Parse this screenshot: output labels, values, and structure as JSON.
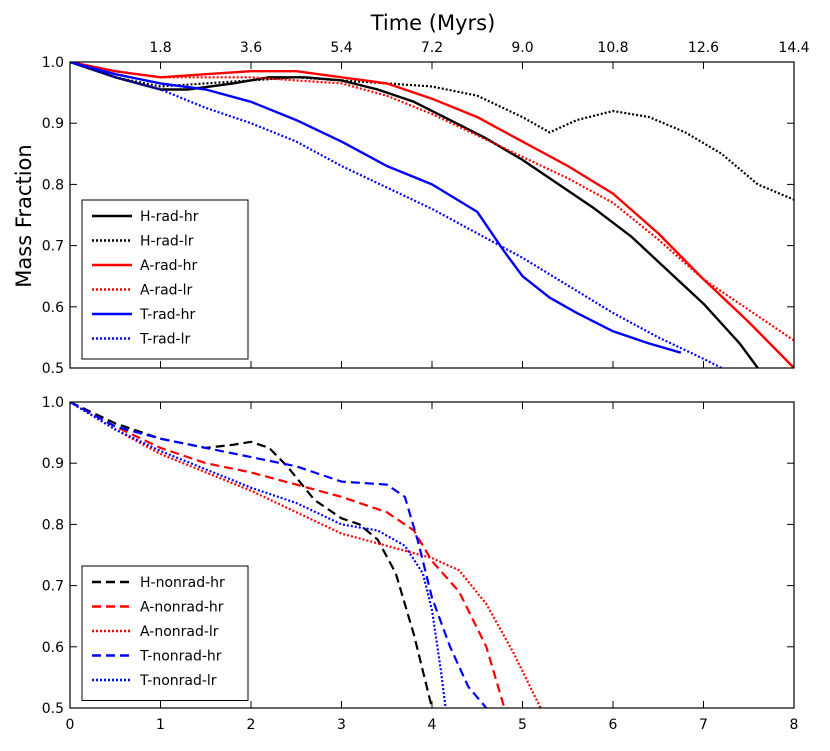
{
  "chart_data": [
    {
      "type": "line",
      "panel": "top",
      "title": "",
      "xlabel": "",
      "ylabel": "Mass Fraction",
      "x2label": "Time (Myrs)",
      "xlim": [
        0,
        8
      ],
      "ylim": [
        0.5,
        1.0
      ],
      "y_ticks": [
        "0.5",
        "0.6",
        "0.7",
        "0.8",
        "0.9",
        "1.0"
      ],
      "x2_ticks": [
        "1.8",
        "3.6",
        "5.4",
        "7.2",
        "9.0",
        "10.8",
        "12.6",
        "14.4"
      ],
      "legend_position": "lower-left",
      "series": [
        {
          "name": "H-rad-hr",
          "color": "#000000",
          "style": "solid",
          "x": [
            0,
            0.5,
            1.0,
            1.3,
            1.8,
            2.2,
            2.6,
            3.0,
            3.4,
            3.8,
            4.2,
            4.6,
            5.0,
            5.4,
            5.8,
            6.2,
            6.6,
            7.0,
            7.4,
            7.6
          ],
          "y": [
            1.0,
            0.975,
            0.955,
            0.955,
            0.965,
            0.975,
            0.975,
            0.97,
            0.955,
            0.935,
            0.905,
            0.875,
            0.84,
            0.8,
            0.76,
            0.715,
            0.66,
            0.605,
            0.54,
            0.5
          ]
        },
        {
          "name": "H-rad-lr",
          "color": "#000000",
          "style": "dotted",
          "x": [
            0,
            0.5,
            1.0,
            1.5,
            2.0,
            2.5,
            3.0,
            3.5,
            4.0,
            4.5,
            5.0,
            5.3,
            5.6,
            6.0,
            6.4,
            6.8,
            7.2,
            7.6,
            8.0
          ],
          "y": [
            1.0,
            0.975,
            0.96,
            0.965,
            0.97,
            0.975,
            0.97,
            0.965,
            0.96,
            0.945,
            0.91,
            0.885,
            0.905,
            0.92,
            0.91,
            0.885,
            0.85,
            0.8,
            0.775
          ]
        },
        {
          "name": "A-rad-hr",
          "color": "#ff0000",
          "style": "solid",
          "x": [
            0,
            0.5,
            1.0,
            1.5,
            2.0,
            2.5,
            3.0,
            3.5,
            4.0,
            4.5,
            5.0,
            5.5,
            6.0,
            6.5,
            7.0,
            7.5,
            8.0
          ],
          "y": [
            1.0,
            0.985,
            0.975,
            0.98,
            0.985,
            0.985,
            0.975,
            0.965,
            0.94,
            0.91,
            0.87,
            0.83,
            0.785,
            0.72,
            0.645,
            0.575,
            0.5
          ]
        },
        {
          "name": "A-rad-lr",
          "color": "#ff0000",
          "style": "dotted",
          "x": [
            0,
            0.5,
            1.0,
            1.5,
            2.0,
            2.5,
            3.0,
            3.5,
            4.0,
            4.5,
            5.0,
            5.5,
            6.0,
            6.5,
            7.0,
            7.5,
            8.0
          ],
          "y": [
            1.0,
            0.985,
            0.975,
            0.975,
            0.975,
            0.97,
            0.965,
            0.945,
            0.915,
            0.88,
            0.845,
            0.81,
            0.77,
            0.71,
            0.645,
            0.595,
            0.545
          ]
        },
        {
          "name": "T-rad-hr",
          "color": "#0000ff",
          "style": "solid",
          "x": [
            0,
            0.5,
            1.0,
            1.5,
            2.0,
            2.5,
            3.0,
            3.5,
            4.0,
            4.5,
            4.8,
            5.0,
            5.3,
            5.6,
            6.0,
            6.4,
            6.75
          ],
          "y": [
            1.0,
            0.98,
            0.965,
            0.955,
            0.935,
            0.905,
            0.87,
            0.83,
            0.8,
            0.755,
            0.69,
            0.65,
            0.615,
            0.59,
            0.56,
            0.54,
            0.525
          ]
        },
        {
          "name": "T-rad-lr",
          "color": "#0000ff",
          "style": "dotted",
          "x": [
            0,
            0.5,
            1.0,
            1.5,
            2.0,
            2.5,
            3.0,
            3.5,
            4.0,
            4.5,
            5.0,
            5.5,
            6.0,
            6.5,
            7.0,
            7.2
          ],
          "y": [
            1.0,
            0.975,
            0.955,
            0.925,
            0.9,
            0.87,
            0.83,
            0.795,
            0.76,
            0.72,
            0.68,
            0.635,
            0.59,
            0.55,
            0.515,
            0.5
          ]
        }
      ]
    },
    {
      "type": "line",
      "panel": "bottom",
      "title": "",
      "xlabel": "",
      "ylabel": "",
      "xlim": [
        0,
        8
      ],
      "ylim": [
        0.5,
        1.0
      ],
      "x_ticks": [
        "0",
        "1",
        "2",
        "3",
        "4",
        "5",
        "6",
        "7",
        "8"
      ],
      "y_ticks": [
        "0.5",
        "0.6",
        "0.7",
        "0.8",
        "0.9",
        "1.0"
      ],
      "legend_position": "lower-left",
      "series": [
        {
          "name": "H-nonrad-hr",
          "color": "#000000",
          "style": "dashed",
          "x": [
            0,
            0.5,
            1.0,
            1.5,
            1.8,
            2.0,
            2.2,
            2.4,
            2.7,
            3.0,
            3.2,
            3.4,
            3.6,
            3.8,
            4.0
          ],
          "y": [
            1.0,
            0.965,
            0.94,
            0.925,
            0.93,
            0.935,
            0.925,
            0.895,
            0.84,
            0.81,
            0.8,
            0.775,
            0.72,
            0.62,
            0.5
          ]
        },
        {
          "name": "A-nonrad-hr",
          "color": "#ff0000",
          "style": "dashed",
          "x": [
            0,
            0.5,
            1.0,
            1.5,
            2.0,
            2.5,
            3.0,
            3.5,
            3.8,
            4.0,
            4.3,
            4.6,
            4.8
          ],
          "y": [
            1.0,
            0.96,
            0.925,
            0.9,
            0.885,
            0.865,
            0.845,
            0.82,
            0.79,
            0.74,
            0.69,
            0.6,
            0.5
          ]
        },
        {
          "name": "A-nonrad-lr",
          "color": "#ff0000",
          "style": "dotted",
          "x": [
            0,
            0.5,
            1.0,
            1.5,
            2.0,
            2.5,
            3.0,
            3.5,
            4.0,
            4.3,
            4.6,
            4.9,
            5.2
          ],
          "y": [
            1.0,
            0.955,
            0.915,
            0.885,
            0.855,
            0.82,
            0.785,
            0.765,
            0.745,
            0.725,
            0.67,
            0.59,
            0.5
          ]
        },
        {
          "name": "T-nonrad-hr",
          "color": "#0000ff",
          "style": "dashed",
          "x": [
            0,
            0.5,
            1.0,
            1.5,
            2.0,
            2.5,
            3.0,
            3.5,
            3.7,
            3.85,
            4.0,
            4.2,
            4.4,
            4.6
          ],
          "y": [
            1.0,
            0.96,
            0.94,
            0.925,
            0.91,
            0.895,
            0.87,
            0.865,
            0.845,
            0.77,
            0.68,
            0.6,
            0.535,
            0.5
          ]
        },
        {
          "name": "T-nonrad-lr",
          "color": "#0000ff",
          "style": "dotted",
          "x": [
            0,
            0.5,
            1.0,
            1.5,
            2.0,
            2.5,
            3.0,
            3.4,
            3.7,
            3.9,
            4.0,
            4.1,
            4.15
          ],
          "y": [
            1.0,
            0.955,
            0.92,
            0.89,
            0.86,
            0.835,
            0.8,
            0.79,
            0.765,
            0.72,
            0.66,
            0.56,
            0.5
          ]
        }
      ]
    }
  ]
}
